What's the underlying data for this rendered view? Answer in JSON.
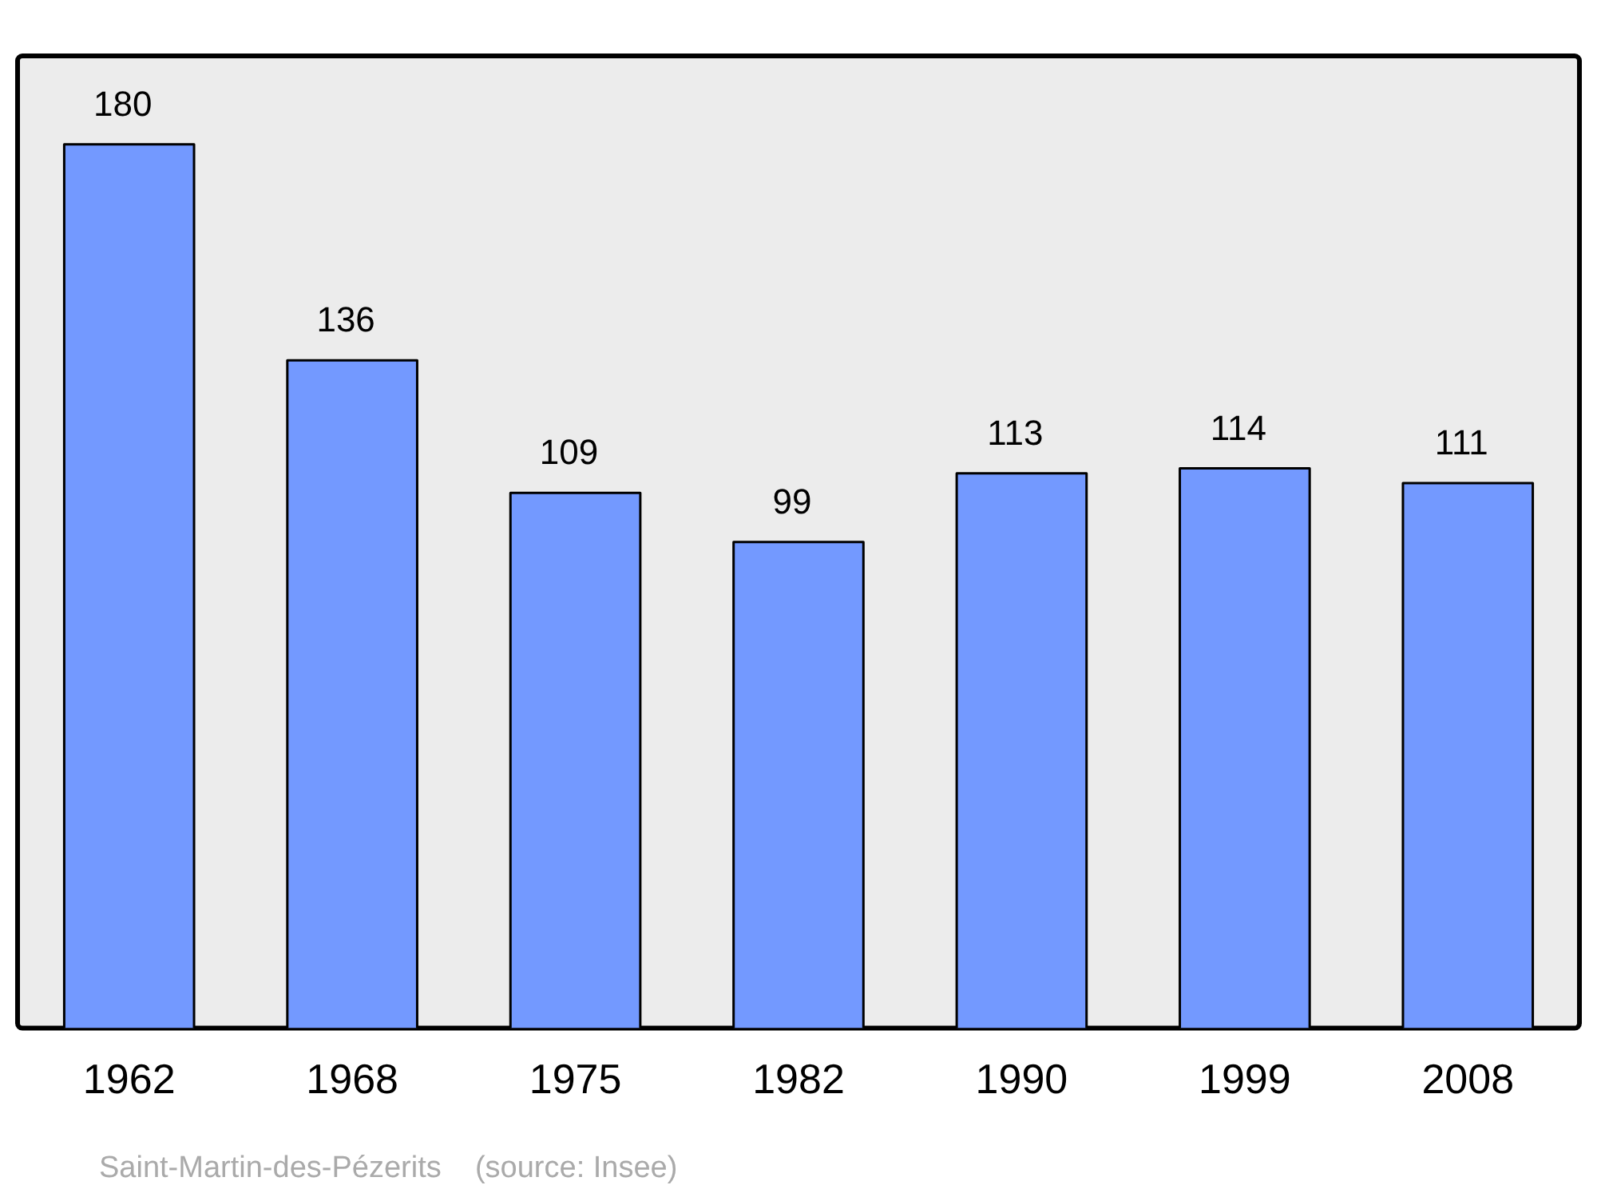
{
  "chart_data": {
    "type": "bar",
    "categories": [
      "1962",
      "1968",
      "1975",
      "1982",
      "1990",
      "1999",
      "2008"
    ],
    "values": [
      180,
      136,
      109,
      99,
      113,
      114,
      111
    ],
    "color": "#7399ff",
    "data_labels": true,
    "grid": false,
    "legend": false,
    "annotations": [
      "Saint-Martin-des-Pézerits    (source: Insee)"
    ]
  }
}
